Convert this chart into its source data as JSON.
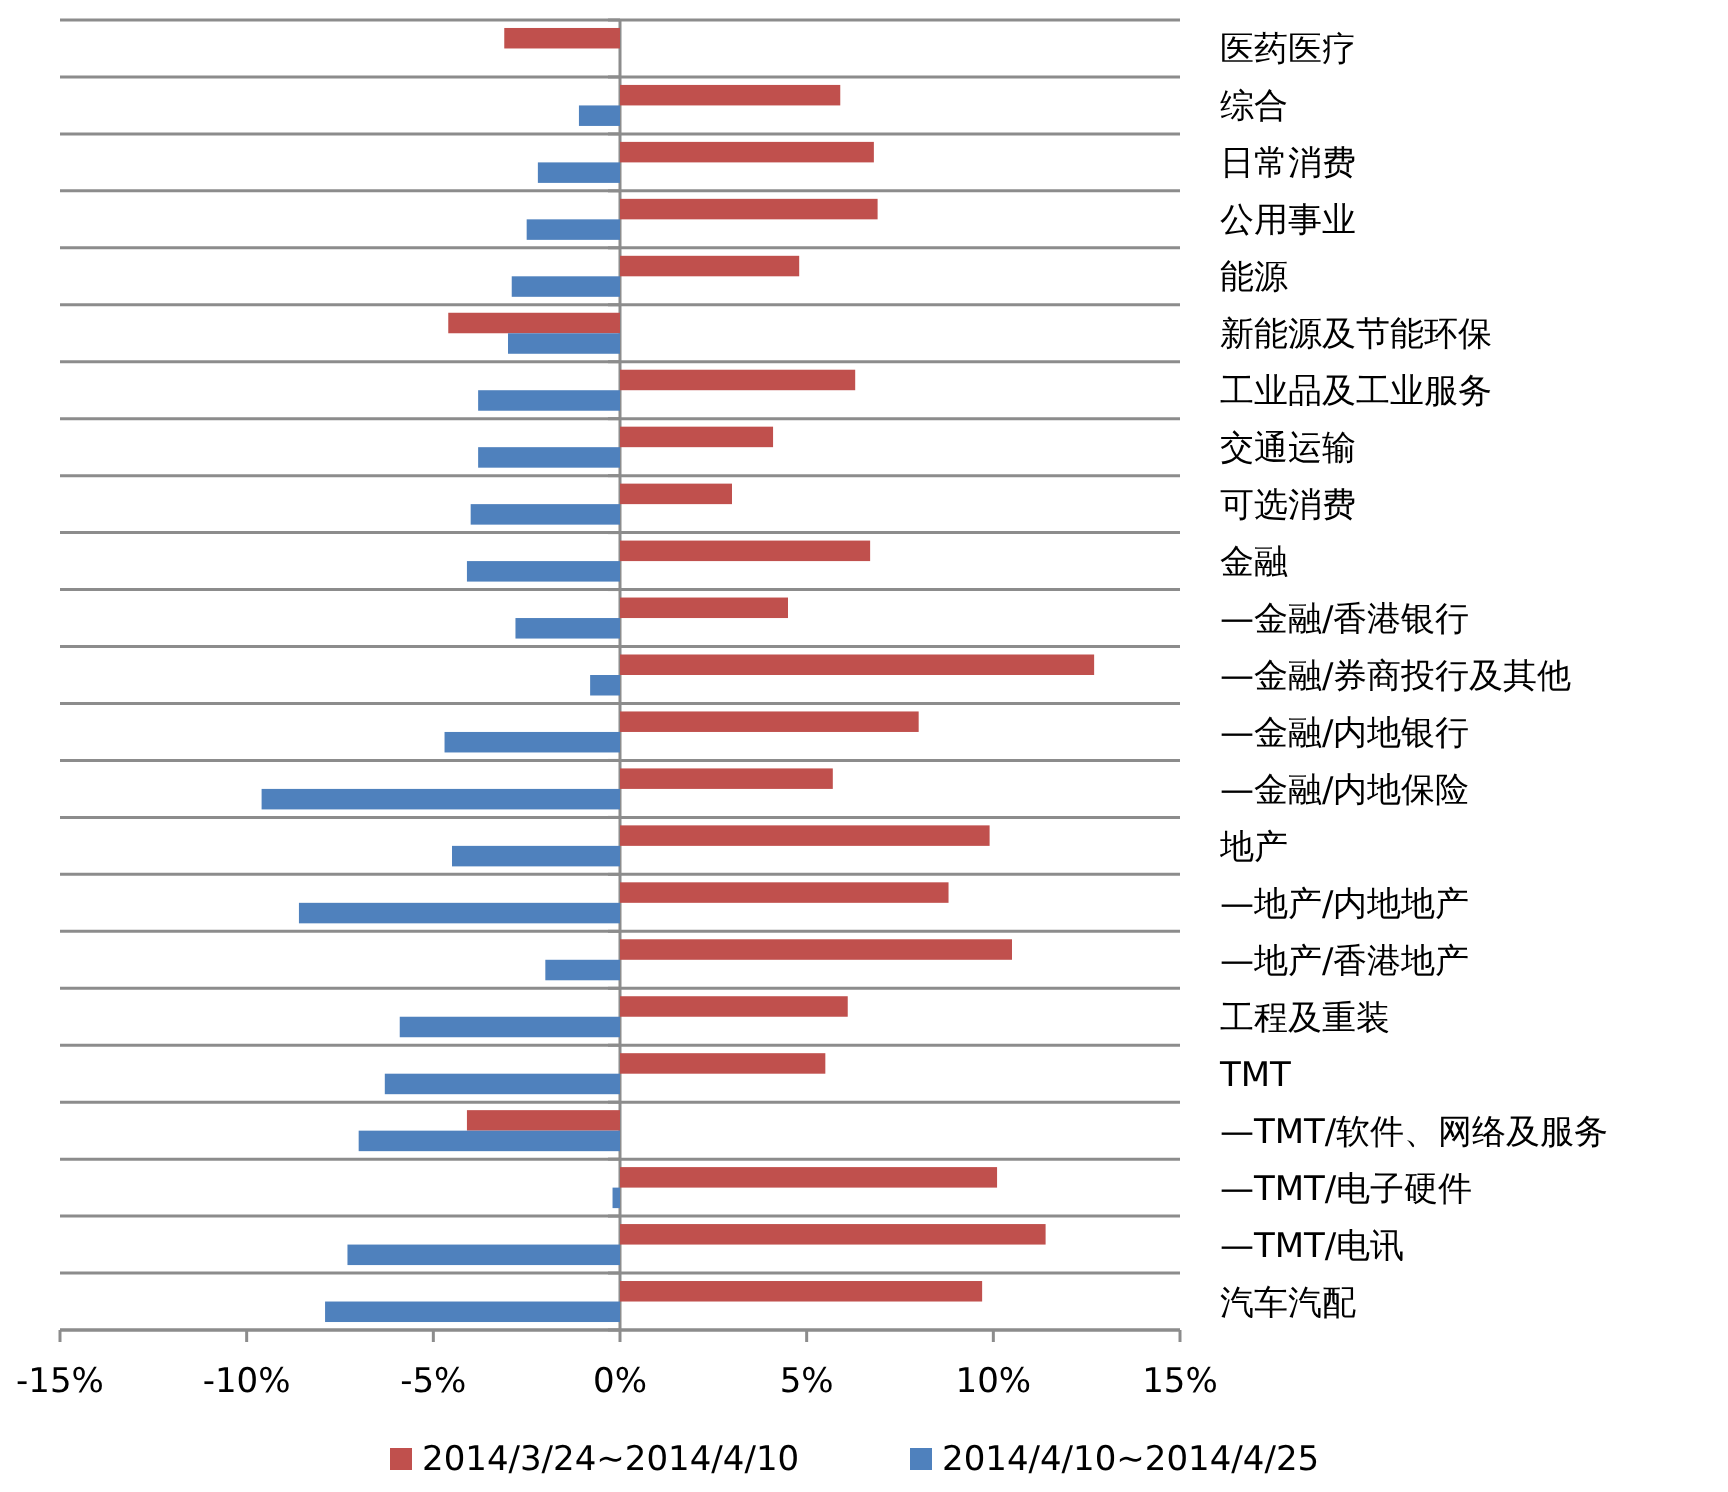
{
  "chart_data": {
    "type": "bar",
    "orientation": "horizontal",
    "categories": [
      "医药医疗",
      "综合",
      "日常消费",
      "公用事业",
      "能源",
      "新能源及节能环保",
      "工业品及工业服务",
      "交通运输",
      "可选消费",
      "金融",
      "—金融/香港银行",
      "—金融/券商投行及其他",
      "—金融/内地银行",
      "—金融/内地保险",
      "地产",
      "—地产/内地地产",
      "—地产/香港地产",
      "工程及重装",
      "TMT",
      "—TMT/软件、网络及服务",
      "—TMT/电子硬件",
      "—TMT/电讯",
      "汽车汽配"
    ],
    "series": [
      {
        "name": "2014/3/24~2014/4/10",
        "color": "#c0504d",
        "values": [
          -3.1,
          5.9,
          6.8,
          6.9,
          4.8,
          -4.6,
          6.3,
          4.1,
          3.0,
          6.7,
          4.5,
          12.7,
          8.0,
          5.7,
          9.9,
          8.8,
          10.5,
          6.1,
          5.5,
          -4.1,
          10.1,
          11.4,
          9.7
        ]
      },
      {
        "name": "2014/4/10~2014/4/25",
        "color": "#4f81bd",
        "values": [
          null,
          -1.1,
          -2.2,
          -2.5,
          -2.9,
          -3.0,
          -3.8,
          -3.8,
          -4.0,
          -4.1,
          -2.8,
          -0.8,
          -4.7,
          -9.6,
          -4.5,
          -8.6,
          -2.0,
          -5.9,
          -6.3,
          -7.0,
          -0.2,
          -7.3,
          -7.9
        ]
      }
    ],
    "xlim": [
      -15,
      15
    ],
    "xticks": [
      {
        "value": -15,
        "label": "-15%"
      },
      {
        "value": -10,
        "label": "-10%"
      },
      {
        "value": -5,
        "label": "-5%"
      },
      {
        "value": 0,
        "label": "0%"
      },
      {
        "value": 5,
        "label": "5%"
      },
      {
        "value": 10,
        "label": "10%"
      },
      {
        "value": 15,
        "label": "15%"
      }
    ],
    "grid": true,
    "legend": "bottom"
  }
}
